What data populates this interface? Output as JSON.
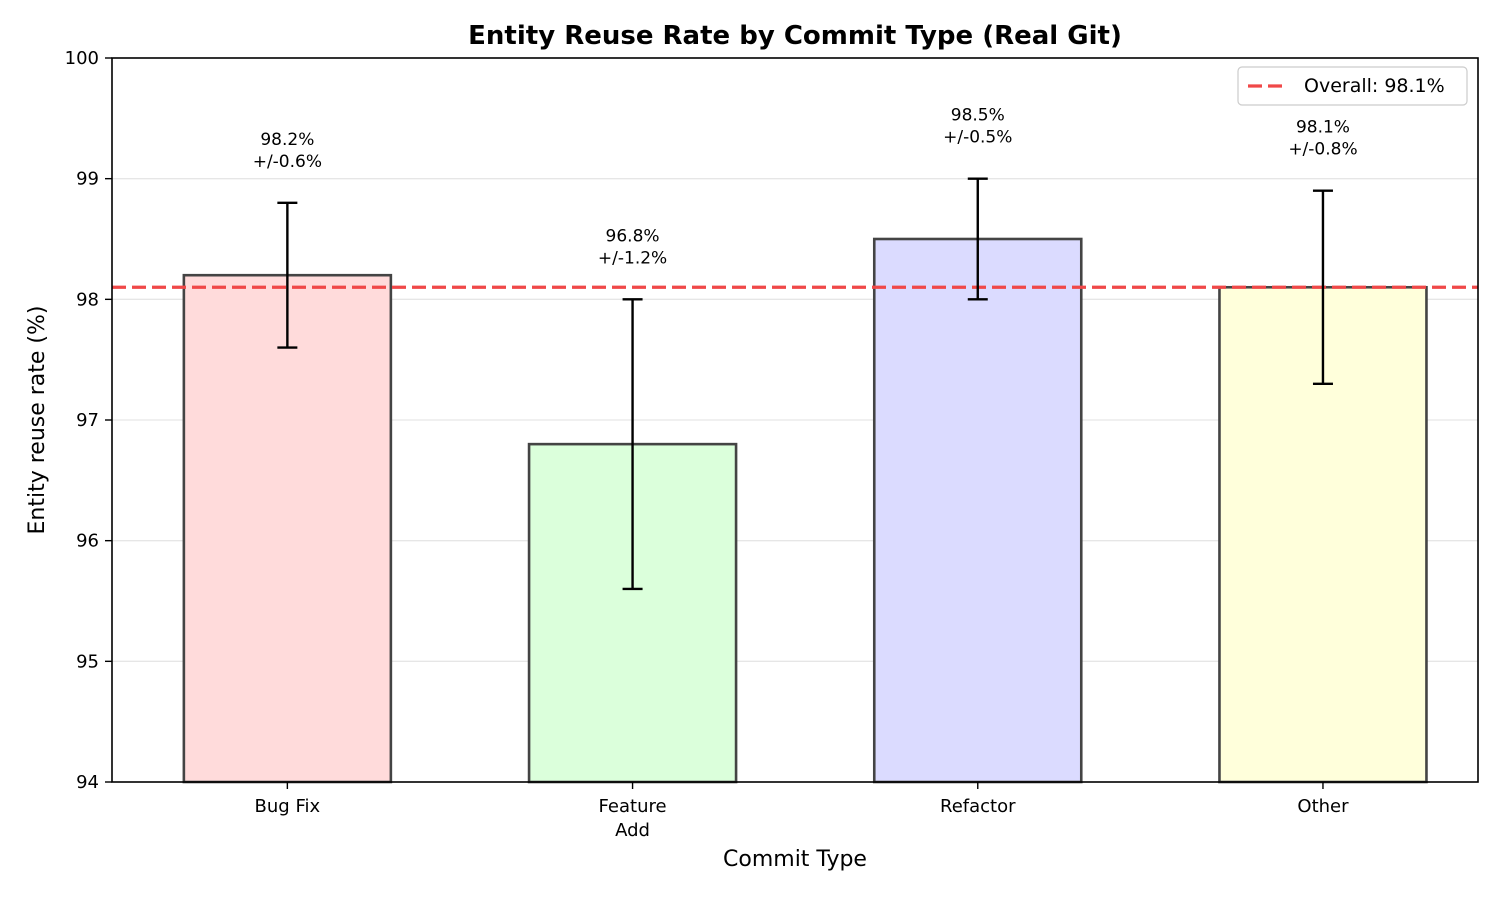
{
  "chart_data": {
    "type": "bar",
    "title": "Entity Reuse Rate by Commit Type (Real Git)",
    "xlabel": "Commit Type",
    "ylabel": "Entity reuse rate (%)",
    "ylim": [
      94,
      100
    ],
    "yticks": [
      94,
      95,
      96,
      97,
      98,
      99,
      100
    ],
    "grid": "y",
    "categories": [
      [
        "Bug Fix"
      ],
      [
        "Feature",
        "Add"
      ],
      [
        "Refactor"
      ],
      [
        "Other"
      ]
    ],
    "values": [
      98.2,
      96.8,
      98.5,
      98.1
    ],
    "errors": [
      0.6,
      1.2,
      0.5,
      0.8
    ],
    "value_labels": [
      "98.2%",
      "96.8%",
      "98.5%",
      "98.1%"
    ],
    "error_labels": [
      "+/-0.6%",
      "+/-1.2%",
      "+/-0.5%",
      "+/-0.8%"
    ],
    "colors": [
      "#ffdbdb",
      "#dbffdb",
      "#dbdbff",
      "#ffffdb"
    ],
    "bar_edge_color": "#444444",
    "reference_line": {
      "value": 98.1,
      "label": "Overall: 98.1%",
      "color": "#f04848",
      "style": "dashed"
    },
    "legend_position": "top-right"
  }
}
